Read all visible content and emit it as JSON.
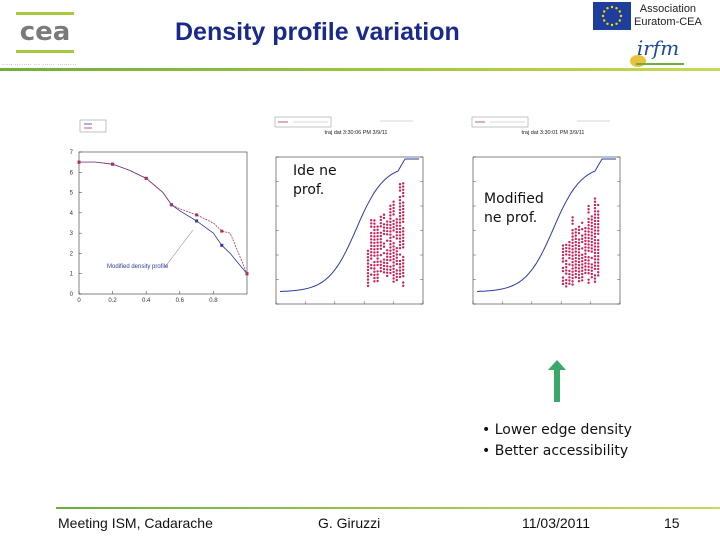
{
  "slide": {
    "title": "Density profile variation",
    "association": [
      "Association",
      "Euratom-CEA"
    ],
    "labels": {
      "ideal": "Ide ne prof.",
      "modified": "Modified ne prof."
    },
    "bullets": [
      "Lower edge density",
      "Better accessibility"
    ],
    "footer": {
      "meeting": "Meeting ISM, Cadarache",
      "author": "G. Giruzzi",
      "date": "11/03/2011",
      "page": "15"
    }
  },
  "chart_data": [
    {
      "type": "line",
      "annotations": [
        "Modified density profile"
      ],
      "ylim": [
        0,
        7
      ],
      "xlim": [
        0,
        1
      ],
      "x_ticks": [
        "0",
        "0.2",
        "0.4",
        "0.6",
        "0.8"
      ],
      "y_ticks": [
        "0",
        "1",
        "2",
        "3",
        "4",
        "5",
        "6",
        "7"
      ],
      "series": [
        {
          "color": "#2a3a9a",
          "x": [
            0,
            0.1,
            0.2,
            0.3,
            0.4,
            0.5,
            0.55,
            0.6,
            0.7,
            0.8,
            0.85,
            0.9,
            1.0
          ],
          "y": [
            6.5,
            6.5,
            6.4,
            6.1,
            5.7,
            5.0,
            4.4,
            4.1,
            3.6,
            3.0,
            2.4,
            2.0,
            1.0
          ]
        },
        {
          "color": "#b03060",
          "x": [
            0,
            0.1,
            0.2,
            0.3,
            0.4,
            0.5,
            0.55,
            0.6,
            0.7,
            0.8,
            0.85,
            0.9,
            1.0
          ],
          "y": [
            6.5,
            6.5,
            6.4,
            6.1,
            5.7,
            5.0,
            4.4,
            4.2,
            3.9,
            3.5,
            3.1,
            3.0,
            1.0
          ]
        }
      ]
    },
    {
      "type": "scatter",
      "caption": "traj dat 3:30:06 PM 3/9/11"
    },
    {
      "type": "scatter",
      "caption": "traj dat 3:30:01 PM 3/9/11"
    }
  ]
}
